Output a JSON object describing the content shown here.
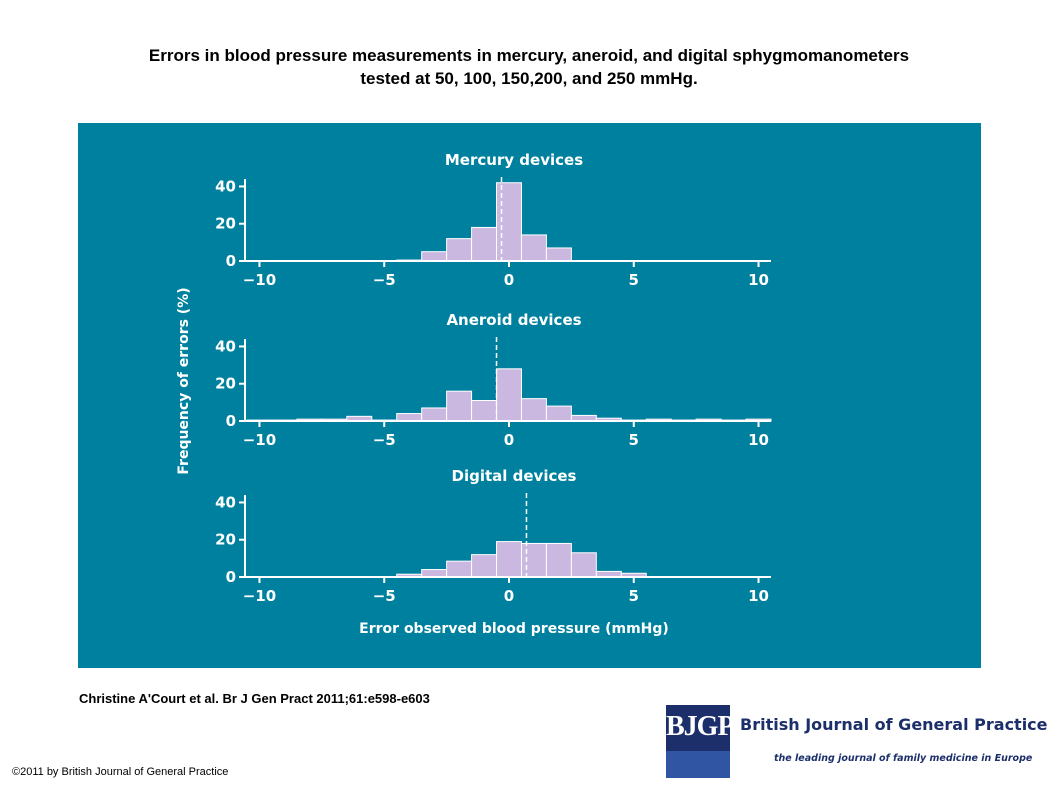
{
  "slide": {
    "title_line1": "Errors in blood pressure measurements in mercury, aneroid, and digital sphygmomanometers",
    "title_line2": "tested at 50, 100, 150,200, and 250 mmHg.",
    "citation": "Christine A'Court et al. Br J Gen Pract 2011;61:e598-e603",
    "copyright": "©2011 by British Journal of General Practice"
  },
  "logo": {
    "abbrev": "BJGP",
    "name": "British Journal of General Practice",
    "tagline": "the leading journal of family medicine in Europe"
  },
  "colors": {
    "panel_background": "#00809f",
    "bar_fill": "#cbb8e0",
    "bar_stroke": "#ffffff",
    "text": "#ffffff"
  },
  "chart_data": [
    {
      "type": "bar",
      "title": "Mercury devices",
      "xlabel": "",
      "ylabel": "Frequency of errors (%)",
      "xlim": [
        -10.5,
        10.5
      ],
      "ylim": [
        0,
        44
      ],
      "xticks": [
        -10,
        -5,
        0,
        5,
        10
      ],
      "yticks": [
        0,
        20,
        40
      ],
      "bin_centers": [
        -10,
        -9,
        -8,
        -7,
        -6,
        -5,
        -4,
        -3,
        -2,
        -1,
        0,
        1,
        2,
        3,
        4,
        5,
        6,
        7,
        8,
        9,
        10
      ],
      "values": [
        0,
        0,
        0,
        0,
        0,
        0,
        0.5,
        5,
        12,
        18,
        42,
        14,
        7,
        0,
        0,
        0,
        0,
        0,
        0,
        0,
        0
      ],
      "mean_line": -0.3
    },
    {
      "type": "bar",
      "title": "Aneroid devices",
      "xlabel": "",
      "ylabel": "Frequency of errors (%)",
      "xlim": [
        -10.5,
        10.5
      ],
      "ylim": [
        0,
        44
      ],
      "xticks": [
        -10,
        -5,
        0,
        5,
        10
      ],
      "yticks": [
        0,
        20,
        40
      ],
      "bin_centers": [
        -10,
        -9,
        -8,
        -7,
        -6,
        -5,
        -4,
        -3,
        -2,
        -1,
        0,
        1,
        2,
        3,
        4,
        5,
        6,
        7,
        8,
        9,
        10
      ],
      "values": [
        0.5,
        0.5,
        1,
        1,
        2.5,
        0.5,
        4,
        7,
        16,
        11,
        28,
        12,
        8,
        3,
        1.5,
        0.5,
        1,
        0.5,
        1,
        0.5,
        1
      ],
      "mean_line": -0.5
    },
    {
      "type": "bar",
      "title": "Digital devices",
      "xlabel": "Error observed blood pressure (mmHg)",
      "ylabel": "Frequency of errors (%)",
      "xlim": [
        -10.5,
        10.5
      ],
      "ylim": [
        0,
        44
      ],
      "xticks": [
        -10,
        -5,
        0,
        5,
        10
      ],
      "yticks": [
        0,
        20,
        40
      ],
      "bin_centers": [
        -10,
        -9,
        -8,
        -7,
        -6,
        -5,
        -4,
        -3,
        -2,
        -1,
        0,
        1,
        2,
        3,
        4,
        5,
        6,
        7,
        8,
        9,
        10
      ],
      "values": [
        0,
        0,
        0,
        0,
        0,
        0,
        1.5,
        4,
        8.5,
        12,
        19,
        18,
        18,
        13,
        3,
        2,
        0,
        0,
        0,
        0,
        0
      ],
      "mean_line": 0.7
    }
  ]
}
